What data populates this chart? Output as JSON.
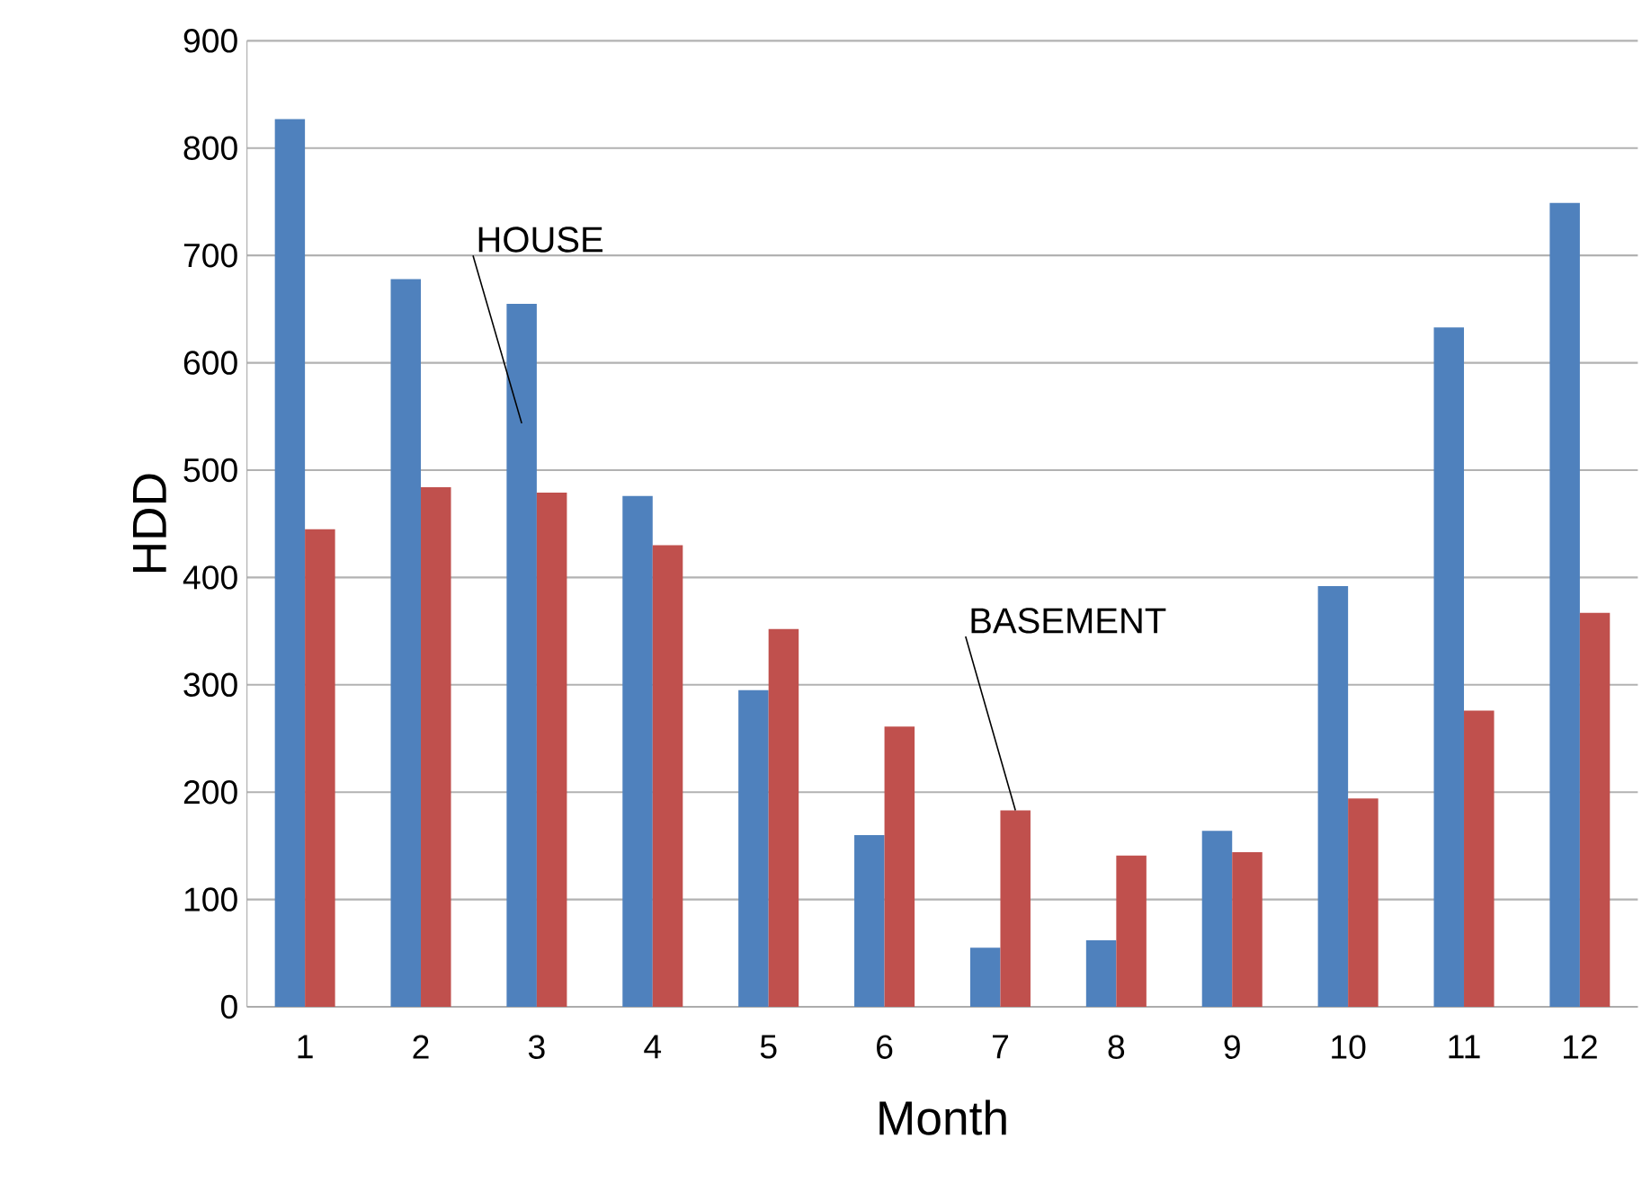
{
  "chart_data": {
    "type": "bar",
    "xlabel": "Month",
    "ylabel": "HDD",
    "categories": [
      "1",
      "2",
      "3",
      "4",
      "5",
      "6",
      "7",
      "8",
      "9",
      "10",
      "11",
      "12"
    ],
    "series": [
      {
        "name": "HOUSE",
        "color": "#4f81bd",
        "values": [
          827,
          678,
          655,
          476,
          295,
          160,
          55,
          62,
          164,
          392,
          633,
          749
        ]
      },
      {
        "name": "BASEMENT",
        "color": "#c0504d",
        "values": [
          445,
          484,
          479,
          430,
          352,
          261,
          183,
          141,
          144,
          194,
          276,
          367
        ]
      }
    ],
    "ylim": [
      0,
      900
    ],
    "yticks": [
      0,
      100,
      200,
      300,
      400,
      500,
      600,
      700,
      800,
      900
    ],
    "grid": "y",
    "legend": false
  }
}
